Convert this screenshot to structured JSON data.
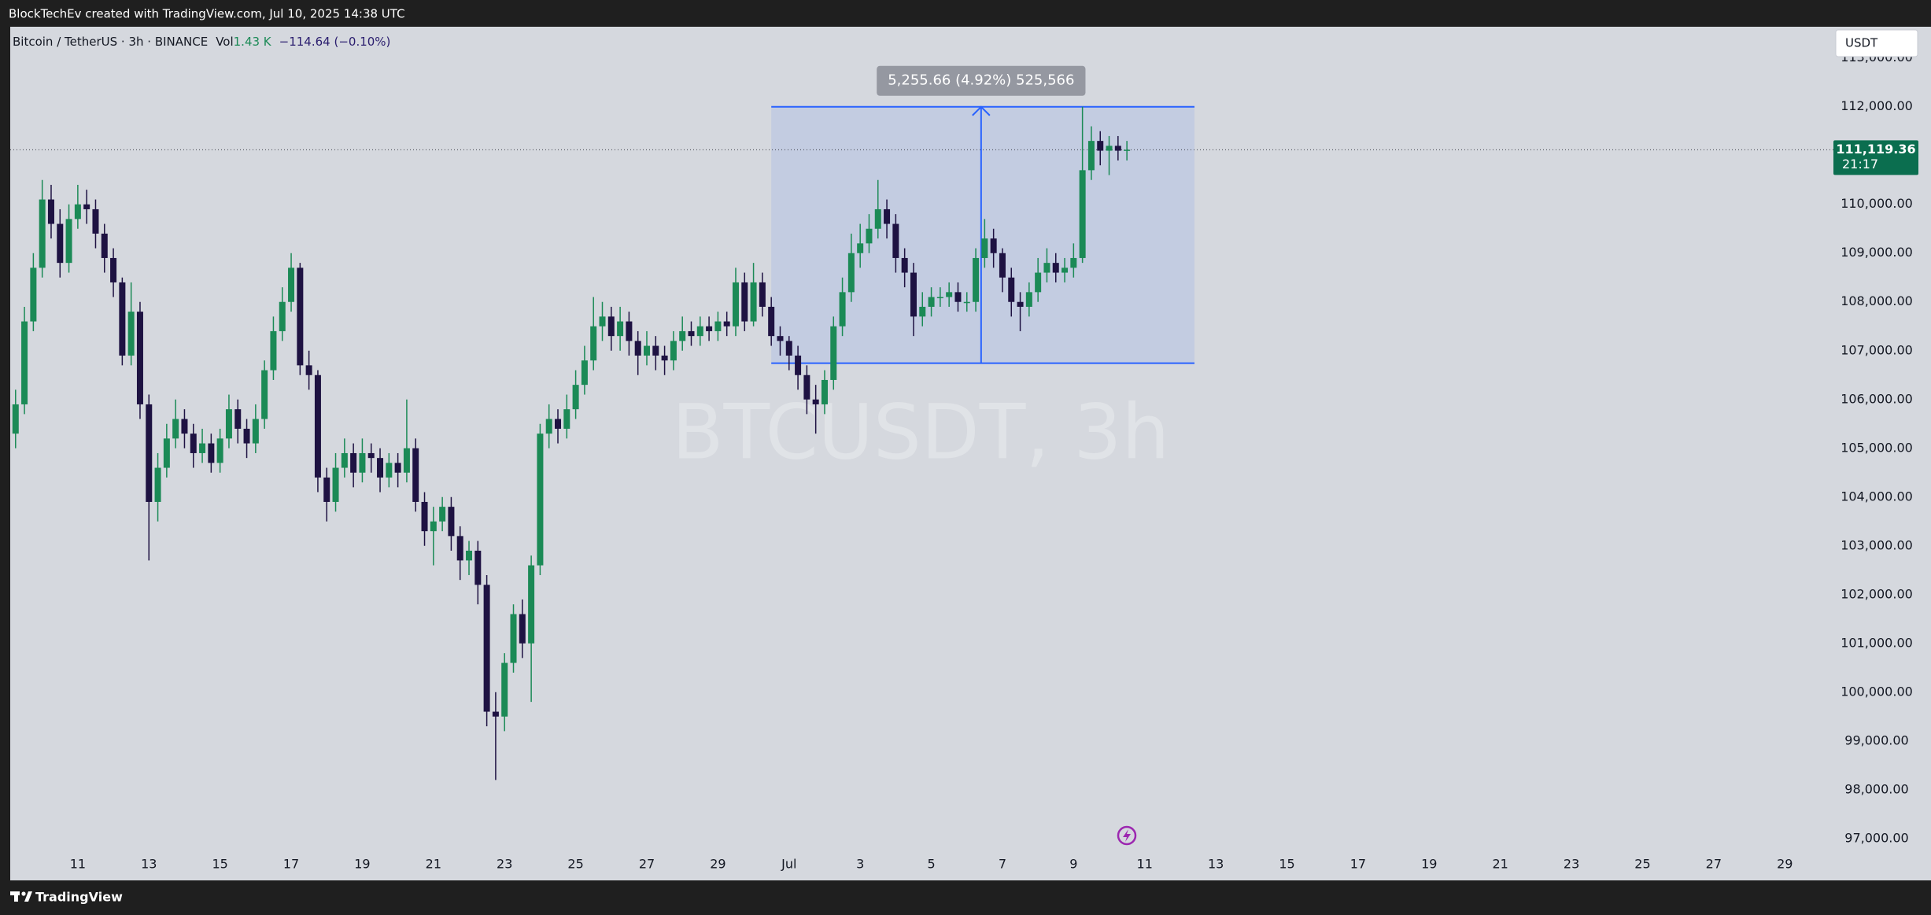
{
  "header": {
    "attribution": "BlockTechEv created with TradingView.com, Jul 10, 2025 14:38 UTC"
  },
  "footer": {
    "brand": "TradingView"
  },
  "chart_data": {
    "type": "candlestick",
    "title": "Bitcoin / TetherUS · 3h · BINANCE",
    "volume_label": "Vol",
    "volume": "1.43 K",
    "change": "−114.64 (−0.10%)",
    "watermark": "BTCUSDT, 3h",
    "currency": "USDT",
    "up_color": "#1b8a56",
    "down_color": "#1e1242",
    "xlim": [
      9.1,
      60.3
    ],
    "xticks": [
      11,
      13,
      15,
      17,
      19,
      21,
      23,
      25,
      27,
      29,
      {
        "value": 31,
        "label": "Jul"
      },
      {
        "value": 33,
        "label": "3"
      },
      {
        "value": 35,
        "label": "5"
      },
      {
        "value": 37,
        "label": "7"
      },
      {
        "value": 39,
        "label": "9"
      },
      {
        "value": 41,
        "label": "11"
      },
      {
        "value": 43,
        "label": "13"
      },
      {
        "value": 45,
        "label": "15"
      },
      {
        "value": 47,
        "label": "17"
      },
      {
        "value": 49,
        "label": "19"
      },
      {
        "value": 51,
        "label": "21"
      },
      {
        "value": 53,
        "label": "23"
      },
      {
        "value": 55,
        "label": "25"
      },
      {
        "value": 57,
        "label": "27"
      },
      {
        "value": 59,
        "label": "29"
      }
    ],
    "ylim": [
      96722,
      113641
    ],
    "yticks": [
      {
        "value": 97000,
        "label": "97,000.00"
      },
      {
        "value": 98000,
        "label": "98,000.00"
      },
      {
        "value": 99000,
        "label": "99,000.00"
      },
      {
        "value": 100000,
        "label": "100,000.00"
      },
      {
        "value": 101000,
        "label": "101,000.00"
      },
      {
        "value": 102000,
        "label": "102,000.00"
      },
      {
        "value": 103000,
        "label": "103,000.00"
      },
      {
        "value": 104000,
        "label": "104,000.00"
      },
      {
        "value": 105000,
        "label": "105,000.00"
      },
      {
        "value": 106000,
        "label": "106,000.00"
      },
      {
        "value": 107000,
        "label": "107,000.00"
      },
      {
        "value": 108000,
        "label": "108,000.00"
      },
      {
        "value": 109000,
        "label": "109,000.00"
      },
      {
        "value": 110000,
        "label": "110,000.00"
      },
      {
        "value": 111000,
        "label": "111,000.00"
      },
      {
        "value": 112000,
        "label": "112,000.00"
      },
      {
        "value": 113000,
        "label": "113,000.00"
      }
    ],
    "last_price": {
      "value": 111119.36,
      "label": "111,119.36"
    },
    "countdown": "21:17",
    "measure": {
      "x": [
        30.5,
        42.4
      ],
      "y": [
        106744,
        112000
      ],
      "arrow_x": 36.4,
      "label": "5,255.66 (4.92%) 525,566"
    },
    "x": [
      9.25,
      9.5,
      9.75,
      10,
      10.25,
      10.5,
      10.75,
      11,
      11.25,
      11.5,
      11.75,
      12,
      12.25,
      12.5,
      12.75,
      13,
      13.25,
      13.5,
      13.75,
      14,
      14.25,
      14.5,
      14.75,
      15,
      15.25,
      15.5,
      15.75,
      16,
      16.25,
      16.5,
      16.75,
      17,
      17.25,
      17.5,
      17.75,
      18,
      18.25,
      18.5,
      18.75,
      19,
      19.25,
      19.5,
      19.75,
      20,
      20.25,
      20.5,
      20.75,
      21,
      21.25,
      21.5,
      21.75,
      22,
      22.25,
      22.5,
      22.75,
      23,
      23.25,
      23.5,
      23.75,
      24,
      24.25,
      24.5,
      24.75,
      25,
      25.25,
      25.5,
      25.75,
      26,
      26.25,
      26.5,
      26.75,
      27,
      27.25,
      27.5,
      27.75,
      28,
      28.25,
      28.5,
      28.75,
      29,
      29.25,
      29.5,
      29.75,
      30,
      30.25,
      30.5,
      30.75,
      31,
      31.25,
      31.5,
      31.75,
      32,
      32.25,
      32.5,
      32.75,
      33,
      33.25,
      33.5,
      33.75,
      34,
      34.25,
      34.5,
      34.75,
      35,
      35.25,
      35.5,
      35.75,
      36,
      36.25,
      36.5,
      36.75,
      37,
      37.25,
      37.5,
      37.75,
      38,
      38.25,
      38.5,
      38.75,
      39,
      39.25,
      39.5,
      39.75,
      40,
      40.25,
      40.5
    ],
    "open": [
      105300,
      105900,
      107600,
      108700,
      110100,
      109600,
      108800,
      109700,
      110000,
      109900,
      109400,
      108900,
      108400,
      106900,
      107800,
      105900,
      103900,
      104600,
      105200,
      105600,
      105300,
      104900,
      105100,
      104700,
      105200,
      105800,
      105400,
      105100,
      105600,
      106600,
      107400,
      108000,
      108700,
      106700,
      106500,
      104400,
      103900,
      104600,
      104900,
      104500,
      104900,
      104800,
      104400,
      104700,
      104500,
      105000,
      103900,
      103300,
      103500,
      103800,
      103200,
      102700,
      102900,
      102200,
      99600,
      99500,
      100600,
      101600,
      101000,
      102600,
      105300,
      105600,
      105400,
      105800,
      106300,
      106800,
      107500,
      107700,
      107300,
      107600,
      107200,
      106900,
      107100,
      106900,
      106800,
      107200,
      107400,
      107300,
      107500,
      107400,
      107600,
      107500,
      108400,
      107600,
      108400,
      107900,
      107300,
      107200,
      106900,
      106500,
      106000,
      105900,
      106400,
      107500,
      108200,
      109000,
      109200,
      109500,
      109900,
      109600,
      108900,
      108600,
      107700,
      107900,
      108100,
      108100,
      108200,
      108000,
      108000,
      108900,
      109300,
      109000,
      108500,
      108000,
      107900,
      108200,
      108600,
      108800,
      108600,
      108700,
      108900,
      110700,
      111300,
      111100,
      111200,
      111100
    ],
    "high": [
      106200,
      107900,
      109000,
      110500,
      110400,
      109900,
      110000,
      110400,
      110300,
      110100,
      109600,
      109100,
      108500,
      108400,
      108000,
      106100,
      104900,
      105500,
      106000,
      105800,
      105500,
      105400,
      105300,
      105400,
      106100,
      106000,
      105600,
      105900,
      106800,
      107700,
      108300,
      109000,
      108800,
      107000,
      106600,
      104600,
      104900,
      105200,
      105100,
      105200,
      105100,
      105000,
      104900,
      104900,
      106000,
      105200,
      104100,
      103800,
      104000,
      104000,
      103400,
      103100,
      103100,
      102400,
      100000,
      100800,
      101800,
      101900,
      102800,
      105500,
      105900,
      105800,
      106100,
      106600,
      107100,
      108100,
      108000,
      107900,
      107900,
      107800,
      107400,
      107400,
      107300,
      107100,
      107400,
      107700,
      107600,
      107700,
      107700,
      107800,
      107800,
      108700,
      108600,
      108800,
      108600,
      108100,
      107500,
      107300,
      107100,
      106700,
      106300,
      106600,
      107700,
      108500,
      109400,
      109600,
      109800,
      110500,
      110100,
      109800,
      109100,
      108800,
      108200,
      108300,
      108300,
      108400,
      108400,
      108200,
      109100,
      109700,
      109500,
      109100,
      108700,
      108200,
      108400,
      108900,
      109100,
      109000,
      108900,
      109200,
      112000,
      111600,
      111500,
      111400,
      111400,
      111300
    ],
    "low": [
      105000,
      105700,
      107400,
      108500,
      109300,
      108500,
      108600,
      109500,
      109600,
      109100,
      108600,
      108100,
      106700,
      106700,
      105600,
      102700,
      103500,
      104400,
      105000,
      105000,
      104600,
      104700,
      104500,
      104500,
      105000,
      105100,
      104800,
      104900,
      105400,
      106400,
      107200,
      107800,
      106500,
      106200,
      104100,
      103500,
      103700,
      104400,
      104200,
      104300,
      104500,
      104100,
      104200,
      104200,
      104300,
      103700,
      103000,
      102600,
      103300,
      102900,
      102300,
      102400,
      101800,
      99300,
      98200,
      99200,
      100400,
      100700,
      99800,
      102400,
      105000,
      105100,
      105200,
      105600,
      106100,
      106600,
      107200,
      107000,
      107000,
      106900,
      106500,
      106700,
      106600,
      106500,
      106600,
      107000,
      107100,
      107100,
      107200,
      107200,
      107300,
      107300,
      107400,
      107500,
      107700,
      107100,
      106900,
      106600,
      106200,
      105700,
      105300,
      105700,
      106200,
      107300,
      108000,
      108700,
      109000,
      109300,
      109300,
      108600,
      108300,
      107300,
      107500,
      107700,
      107900,
      107900,
      107800,
      107800,
      107800,
      108700,
      108700,
      108200,
      107700,
      107400,
      107700,
      108000,
      108400,
      108400,
      108400,
      108500,
      108800,
      110500,
      110800,
      110600,
      110900,
      110900
    ],
    "close": [
      105900,
      107600,
      108700,
      110100,
      109600,
      108800,
      109700,
      110000,
      109900,
      109400,
      108900,
      108400,
      106900,
      107800,
      105900,
      103900,
      104600,
      105200,
      105600,
      105300,
      104900,
      105100,
      104700,
      105200,
      105800,
      105400,
      105100,
      105600,
      106600,
      107400,
      108000,
      108700,
      106700,
      106500,
      104400,
      103900,
      104600,
      104900,
      104500,
      104900,
      104800,
      104400,
      104700,
      104500,
      105000,
      103900,
      103300,
      103500,
      103800,
      103200,
      102700,
      102900,
      102200,
      99600,
      99500,
      100600,
      101600,
      101000,
      102600,
      105300,
      105600,
      105400,
      105800,
      106300,
      106800,
      107500,
      107700,
      107300,
      107600,
      107200,
      106900,
      107100,
      106900,
      106800,
      107200,
      107400,
      107300,
      107500,
      107400,
      107600,
      107500,
      108400,
      107600,
      108400,
      107900,
      107300,
      107200,
      106900,
      106500,
      106000,
      105900,
      106400,
      107500,
      108200,
      109000,
      109200,
      109500,
      109900,
      109600,
      108900,
      108600,
      107700,
      107900,
      108100,
      108100,
      108200,
      108000,
      108000,
      108900,
      109300,
      109000,
      108500,
      108000,
      107900,
      108200,
      108600,
      108800,
      108600,
      108700,
      108900,
      110700,
      111300,
      111100,
      111200,
      111100,
      111119.36
    ]
  }
}
